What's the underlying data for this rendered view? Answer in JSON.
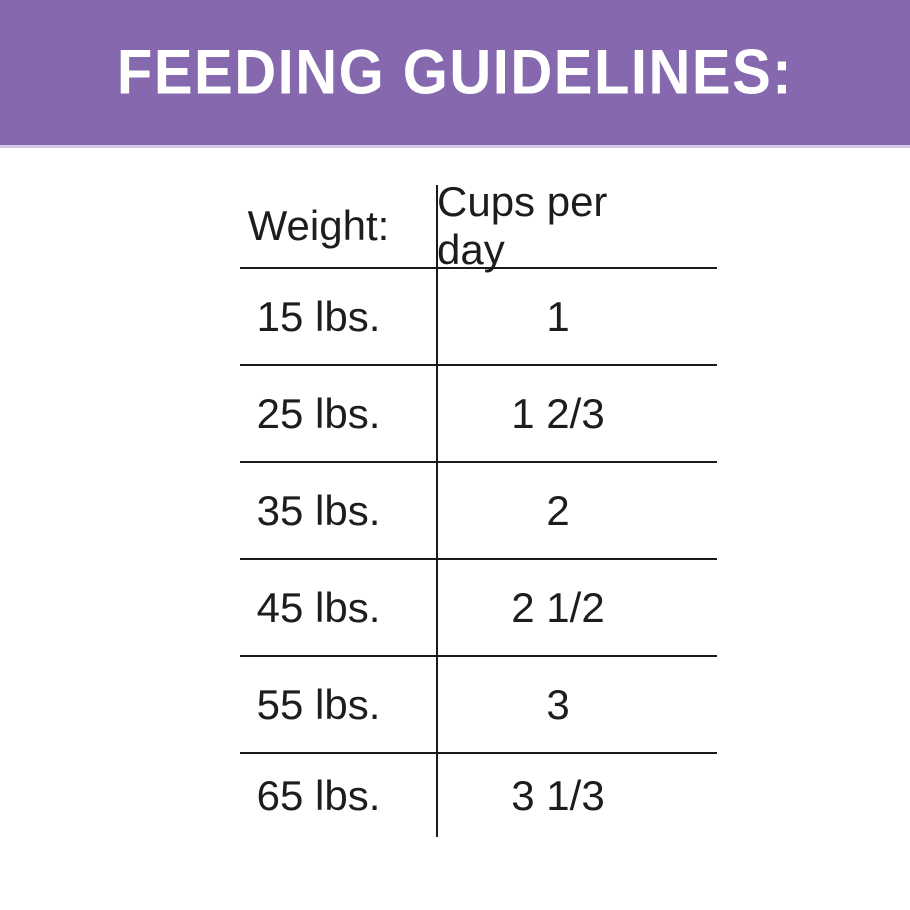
{
  "banner": {
    "title": "FEEDING GUIDELINES:",
    "background_color": "#8568AE",
    "text_color": "#FFFFFF"
  },
  "colors": {
    "table_line": "#1A1A1A",
    "table_text": "#1D1D1D",
    "page_background": "#FFFFFF"
  },
  "chart_data": {
    "type": "table",
    "title": "FEEDING GUIDELINES:",
    "columns": [
      "Weight:",
      "Cups per day"
    ],
    "rows": [
      [
        "15 lbs.",
        "1"
      ],
      [
        "25 lbs.",
        "1 2/3"
      ],
      [
        "35 lbs.",
        "2"
      ],
      [
        "45 lbs.",
        "2 1/2"
      ],
      [
        "55 lbs.",
        "3"
      ],
      [
        "65 lbs.",
        "3 1/3"
      ]
    ],
    "layout": {
      "grid": "vertical divider between columns, horizontal rule under header and between rows, no outer border",
      "legend": "none"
    }
  }
}
